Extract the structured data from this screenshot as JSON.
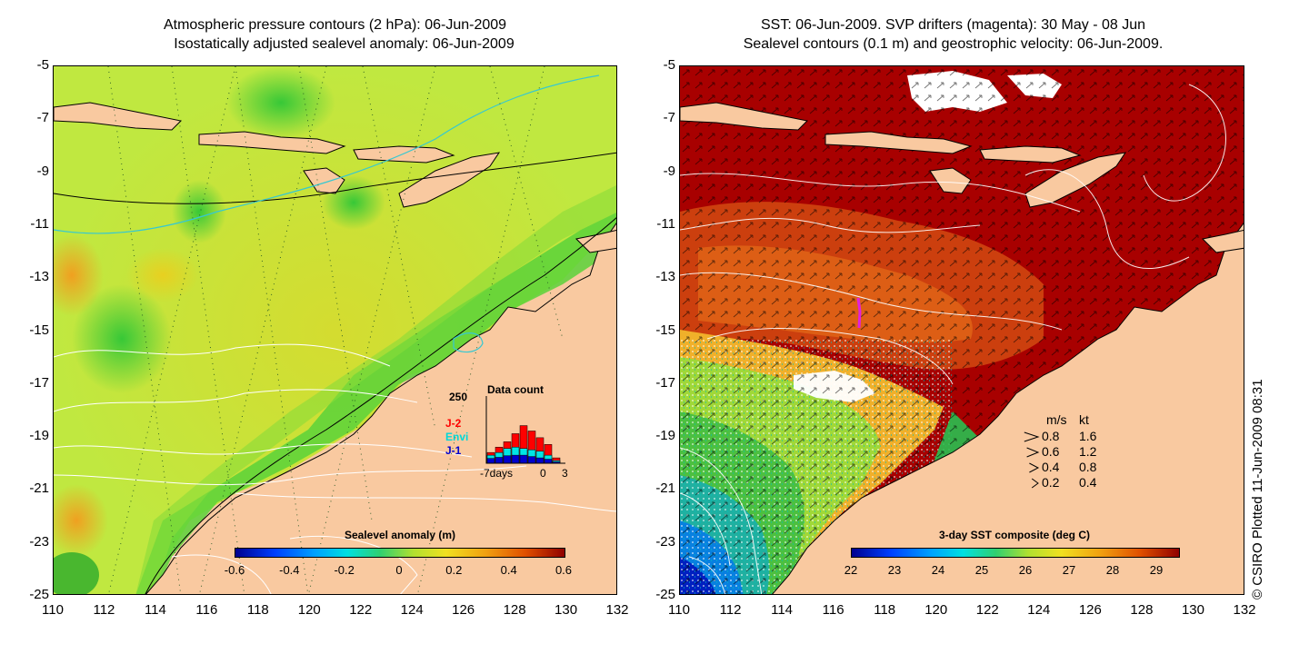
{
  "left_panel": {
    "title_line1": "Atmospheric pressure contours (2 hPa): 06-Jun-2009",
    "title_line2": "Isostatically adjusted sealevel anomaly: 06-Jun-2009",
    "colorbar": {
      "title": "Sealevel anomaly (m)",
      "labels": [
        "-0.6",
        "-0.4",
        "-0.2",
        "0",
        "0.2",
        "0.4",
        "0.6"
      ],
      "range": [
        -0.6,
        0.6
      ]
    },
    "data_count": {
      "title": "Data count",
      "ymax_label": "250",
      "series": [
        "J-2",
        "Envi",
        "J-1"
      ],
      "series_colors": [
        "#ff0000",
        "#00e5e5",
        "#0000cc"
      ],
      "x_labels": [
        "-7days",
        "0",
        "3"
      ],
      "bars_total": [
        40,
        60,
        80,
        110,
        140,
        120,
        95,
        70,
        20
      ],
      "bars_envi": [
        30,
        40,
        55,
        60,
        55,
        50,
        45,
        30,
        10
      ],
      "bars_j1": [
        18,
        22,
        28,
        30,
        30,
        25,
        20,
        15,
        5
      ]
    }
  },
  "right_panel": {
    "title_line1": "SST: 06-Jun-2009. SVP drifters (magenta): 30 May - 08 Jun",
    "title_line2": "Sealevel contours (0.1 m) and geostrophic velocity: 06-Jun-2009.",
    "colorbar": {
      "title": "3-day SST composite (deg C)",
      "labels": [
        "22",
        "23",
        "24",
        "25",
        "26",
        "27",
        "28",
        "29"
      ],
      "range": [
        22,
        29.5
      ]
    },
    "velocity_legend": {
      "header_ms": "m/s",
      "header_kt": "kt",
      "rows": [
        {
          "ms": "0.8",
          "kt": "1.6"
        },
        {
          "ms": "0.6",
          "kt": "1.2"
        },
        {
          "ms": "0.4",
          "kt": "0.8"
        },
        {
          "ms": "0.2",
          "kt": "0.4"
        }
      ]
    }
  },
  "axes": {
    "y_ticks": [
      "-5",
      "-7",
      "-9",
      "-11",
      "-13",
      "-15",
      "-17",
      "-19",
      "-21",
      "-23",
      "-25"
    ],
    "x_ticks": [
      "110",
      "112",
      "114",
      "116",
      "118",
      "120",
      "122",
      "124",
      "126",
      "128",
      "130",
      "132"
    ]
  },
  "credit": "© CSIRO Plotted 11-Jun-2009 08:31",
  "colors": {
    "land": "#f9c9a0",
    "left_ocean_base": "#b8e63c",
    "right_ocean_base": "#a80000"
  }
}
